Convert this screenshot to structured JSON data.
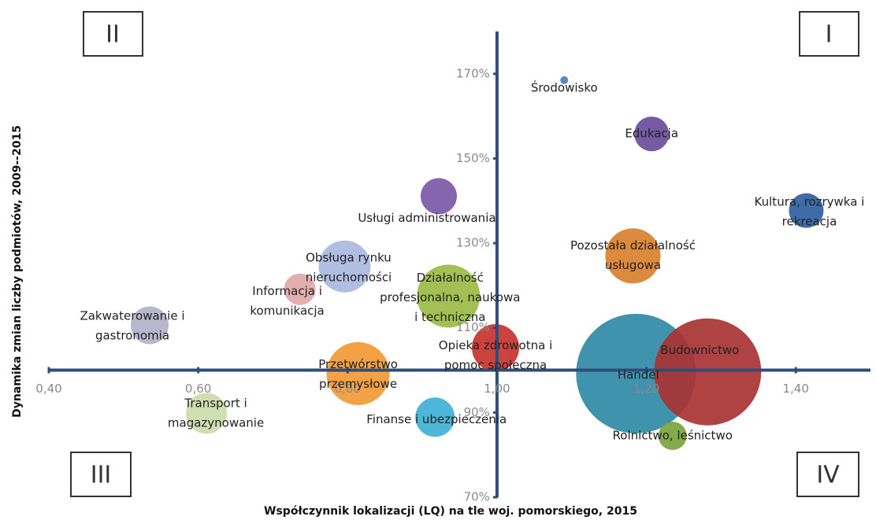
{
  "chart_data": {
    "type": "bubble",
    "xlabel": "Współczynnik lokalizacji (LQ) na tle woj. pomorskiego, 2015",
    "ylabel": "Dynamika zmian liczby podmiotów, 2009--2015",
    "quadrant_labels": [
      "I",
      "II",
      "III",
      "IV"
    ],
    "xlim": [
      0.4,
      1.5
    ],
    "ylim": [
      70,
      180
    ],
    "xticks": [
      {
        "value": 0.4,
        "label": "0,40"
      },
      {
        "value": 0.6,
        "label": "0,60"
      },
      {
        "value": 0.8,
        "label": "0,80"
      },
      {
        "value": 1.0,
        "label": "1,00"
      },
      {
        "value": 1.2,
        "label": "1,20"
      },
      {
        "value": 1.4,
        "label": "1,40"
      }
    ],
    "yticks": [
      {
        "value": 70,
        "label": "70%"
      },
      {
        "value": 90,
        "label": "90%"
      },
      {
        "value": 110,
        "label": "110%"
      },
      {
        "value": 130,
        "label": "130%"
      },
      {
        "value": 150,
        "label": "150%"
      },
      {
        "value": 170,
        "label": "170%"
      }
    ],
    "axis_cross": {
      "x": 1.0,
      "y": 100
    },
    "labels": [
      [
        "Środowisko"
      ],
      [
        "Edukacja"
      ],
      [
        "Kultura, rozrywka i",
        "rekreacja"
      ],
      [
        "Usługi administrowania"
      ],
      [
        "Pozostała działalność",
        "usługowa"
      ],
      [
        "Obsługa rynku",
        "nieruchomości"
      ],
      [
        "Informacja i",
        "komunikacja"
      ],
      [
        "Działalność",
        "profesjonalna, naukowa",
        "i techniczna"
      ],
      [
        "Zakwaterowanie i",
        "gastronomia"
      ],
      [
        "Opieka zdrowotna i",
        "pomoc społeczna"
      ],
      [
        "Przetwórstwo",
        "przemysłowe"
      ],
      [
        "Handel"
      ],
      [
        "Budownictwo"
      ],
      [
        "Transport i",
        "magazynowanie"
      ],
      [
        "Finanse i ubezpieczenia"
      ],
      [
        "Rolnictwo, leśnictwo"
      ]
    ],
    "x": [
      1.09,
      1.207,
      1.414,
      0.922,
      1.182,
      0.796,
      0.736,
      0.935,
      0.535,
      0.998,
      0.814,
      1.186,
      1.282,
      0.611,
      0.917,
      1.235
    ],
    "y": [
      168.5,
      155.8,
      137.7,
      141.1,
      127.0,
      124.5,
      119.1,
      117.5,
      110.6,
      105.3,
      99.2,
      99.2,
      99.6,
      89.8,
      88.9,
      84.5
    ],
    "sizes": [
      25,
      484,
      484,
      529,
      1225,
      1089,
      400,
      1600,
      576,
      900,
      1600,
      5776,
      4624,
      676,
      625,
      324
    ],
    "colors": [
      "#4a7fc1",
      "#6a4c9c",
      "#2f5f9e",
      "#7b58a6",
      "#d9812e",
      "#a9b8df",
      "#e0a7a7",
      "#9bbb45",
      "#b3b1c9",
      "#c8322f",
      "#f19a35",
      "#2f8aa6",
      "#a83232",
      "#cbdcaa",
      "#3fb0d6",
      "#7aa33a"
    ]
  }
}
